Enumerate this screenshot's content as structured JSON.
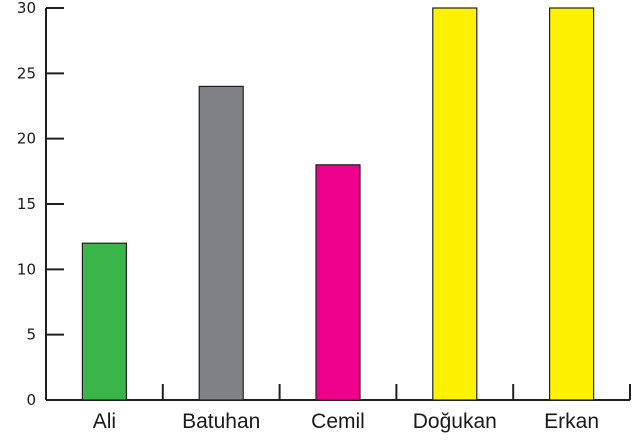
{
  "chart_data": {
    "type": "bar",
    "title": "",
    "xlabel": "",
    "ylabel": "",
    "categories": [
      "Ali",
      "Batuhan",
      "Cemil",
      "Doğukan",
      "Erkan"
    ],
    "values": [
      12,
      24,
      18,
      30,
      30
    ],
    "colors": [
      "#3ab54a",
      "#808285",
      "#ec008c",
      "#fff200",
      "#fff200"
    ],
    "ylim": [
      0,
      30
    ],
    "yticks": [
      0,
      5,
      10,
      15,
      20,
      25,
      30
    ],
    "grid": false,
    "legend": "none"
  }
}
